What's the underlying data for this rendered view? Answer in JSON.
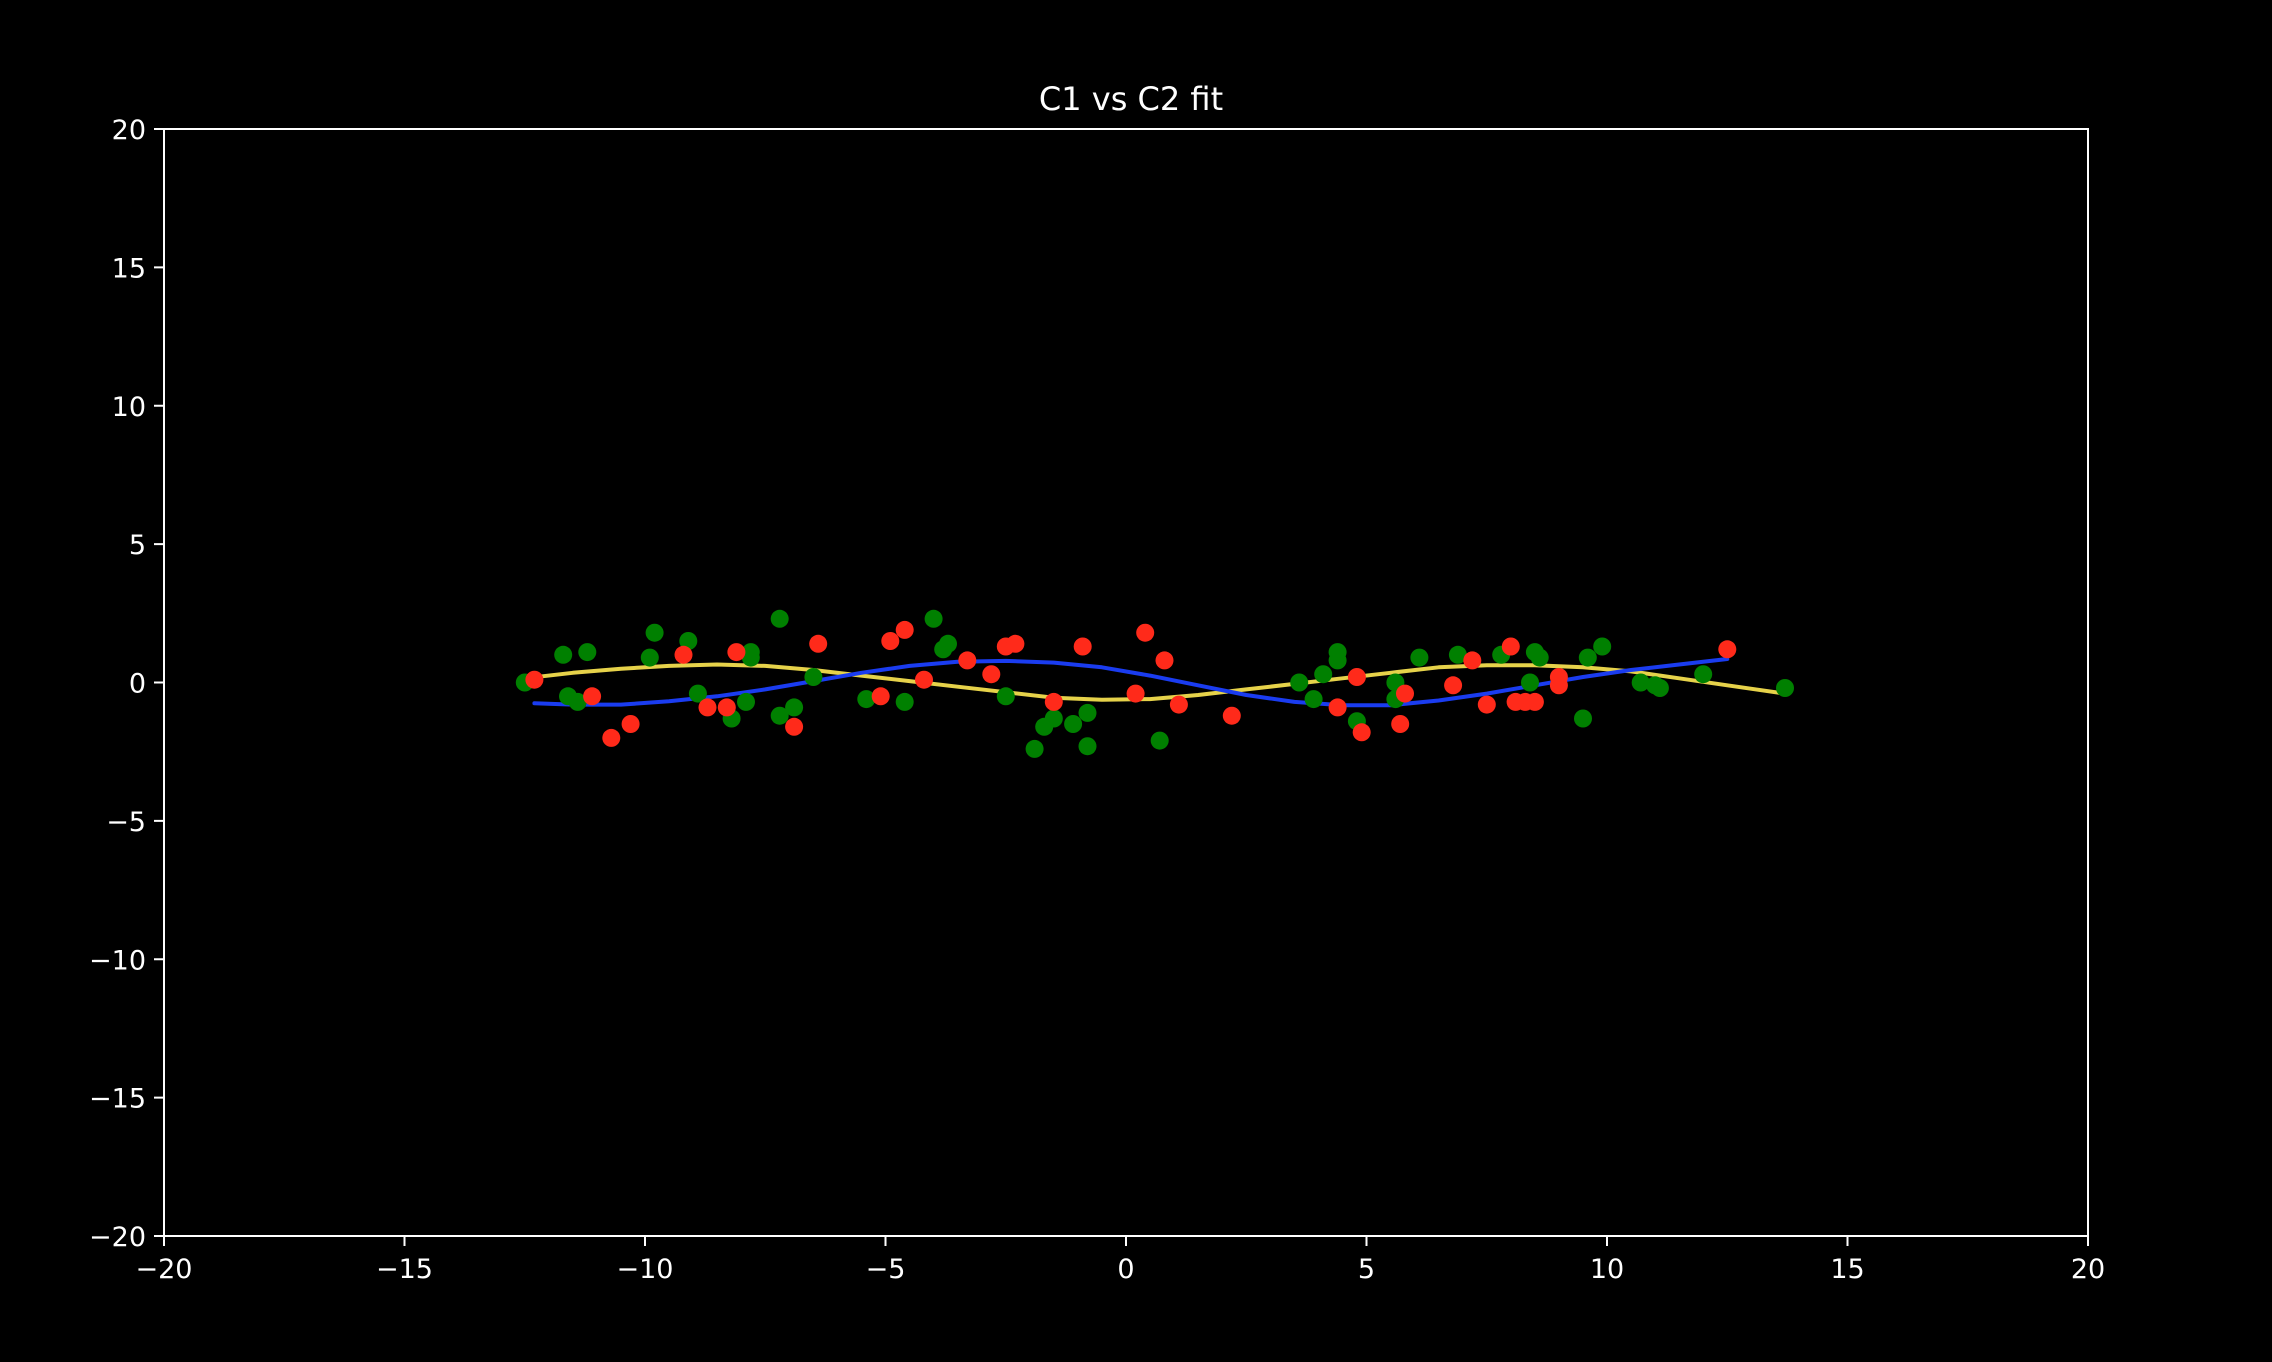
{
  "chart_data": {
    "type": "scatter",
    "title": "C1 vs C2 fit",
    "xlabel": "",
    "ylabel": "",
    "xlim": [
      -20,
      20
    ],
    "ylim": [
      -20,
      20
    ],
    "x_ticks": [
      -20,
      -15,
      -10,
      -5,
      0,
      5,
      10,
      15,
      20
    ],
    "y_ticks": [
      -20,
      -15,
      -10,
      -5,
      0,
      5,
      10,
      15,
      20
    ],
    "x_tick_labels": [
      "−20",
      "−15",
      "−10",
      "−5",
      "0",
      "5",
      "10",
      "15",
      "20"
    ],
    "y_tick_labels": [
      "−20",
      "−15",
      "−10",
      "−5",
      "0",
      "5",
      "10",
      "15",
      "20"
    ],
    "grid": false,
    "background": "#000000",
    "axes_color": "#ffffff",
    "series": [
      {
        "kind": "scatter",
        "color": "#008000",
        "points": [
          [
            -12.5,
            0.0
          ],
          [
            -11.7,
            1.0
          ],
          [
            -11.6,
            -0.5
          ],
          [
            -11.4,
            -0.7
          ],
          [
            -11.2,
            1.1
          ],
          [
            -9.8,
            1.8
          ],
          [
            -9.9,
            0.9
          ],
          [
            -9.1,
            1.5
          ],
          [
            -8.9,
            -0.4
          ],
          [
            -8.2,
            -1.3
          ],
          [
            -7.8,
            1.1
          ],
          [
            -7.8,
            0.9
          ],
          [
            -7.9,
            -0.7
          ],
          [
            -7.2,
            2.3
          ],
          [
            -7.2,
            -1.2
          ],
          [
            -6.9,
            -0.9
          ],
          [
            -6.5,
            0.2
          ],
          [
            -5.4,
            -0.6
          ],
          [
            -4.6,
            -0.7
          ],
          [
            -4.0,
            2.3
          ],
          [
            -3.8,
            1.2
          ],
          [
            -3.7,
            1.4
          ],
          [
            -2.5,
            -0.5
          ],
          [
            -1.9,
            -2.4
          ],
          [
            -1.7,
            -1.6
          ],
          [
            -1.5,
            -1.3
          ],
          [
            -1.1,
            -1.5
          ],
          [
            -0.8,
            -1.1
          ],
          [
            -0.8,
            -2.3
          ],
          [
            0.7,
            -2.1
          ],
          [
            3.6,
            0.0
          ],
          [
            3.9,
            -0.6
          ],
          [
            4.1,
            0.3
          ],
          [
            4.4,
            0.8
          ],
          [
            4.4,
            1.1
          ],
          [
            4.8,
            -1.4
          ],
          [
            5.6,
            0.0
          ],
          [
            5.6,
            -0.6
          ],
          [
            6.1,
            0.9
          ],
          [
            6.9,
            1.0
          ],
          [
            7.8,
            1.0
          ],
          [
            8.4,
            0.0
          ],
          [
            8.5,
            1.1
          ],
          [
            8.6,
            0.9
          ],
          [
            9.6,
            0.9
          ],
          [
            9.9,
            1.3
          ],
          [
            9.5,
            -1.3
          ],
          [
            10.7,
            0.0
          ],
          [
            11.0,
            -0.1
          ],
          [
            11.1,
            -0.2
          ],
          [
            12.0,
            0.3
          ],
          [
            13.7,
            -0.2
          ]
        ]
      },
      {
        "kind": "scatter",
        "color": "#ff2a1a",
        "points": [
          [
            -12.3,
            0.1
          ],
          [
            -11.1,
            -0.5
          ],
          [
            -10.7,
            -2.0
          ],
          [
            -10.3,
            -1.5
          ],
          [
            -9.2,
            1.0
          ],
          [
            -8.7,
            -0.9
          ],
          [
            -8.3,
            -0.9
          ],
          [
            -8.1,
            1.1
          ],
          [
            -6.9,
            -1.6
          ],
          [
            -6.4,
            1.4
          ],
          [
            -5.1,
            -0.5
          ],
          [
            -4.9,
            1.5
          ],
          [
            -4.6,
            1.9
          ],
          [
            -4.2,
            0.1
          ],
          [
            -3.3,
            0.8
          ],
          [
            -2.8,
            0.3
          ],
          [
            -2.5,
            1.3
          ],
          [
            -2.3,
            1.4
          ],
          [
            -1.5,
            -0.7
          ],
          [
            -0.9,
            1.3
          ],
          [
            0.2,
            -0.4
          ],
          [
            0.4,
            1.8
          ],
          [
            0.8,
            0.8
          ],
          [
            1.1,
            -0.8
          ],
          [
            2.2,
            -1.2
          ],
          [
            4.4,
            -0.9
          ],
          [
            4.8,
            0.2
          ],
          [
            4.9,
            -1.8
          ],
          [
            5.7,
            -1.5
          ],
          [
            5.8,
            -0.4
          ],
          [
            6.8,
            -0.1
          ],
          [
            7.2,
            0.8
          ],
          [
            7.5,
            -0.8
          ],
          [
            8.0,
            1.3
          ],
          [
            8.1,
            -0.7
          ],
          [
            8.3,
            -0.7
          ],
          [
            8.5,
            -0.7
          ],
          [
            9.0,
            0.2
          ],
          [
            9.0,
            -0.1
          ],
          [
            12.5,
            1.2
          ]
        ]
      },
      {
        "kind": "line",
        "color": "#e6d24a",
        "points": [
          [
            -12.5,
            0.15
          ],
          [
            -11.5,
            0.35
          ],
          [
            -10.5,
            0.5
          ],
          [
            -9.5,
            0.6
          ],
          [
            -8.5,
            0.65
          ],
          [
            -7.5,
            0.6
          ],
          [
            -6.5,
            0.45
          ],
          [
            -5.5,
            0.25
          ],
          [
            -4.5,
            0.05
          ],
          [
            -3.5,
            -0.15
          ],
          [
            -2.5,
            -0.35
          ],
          [
            -1.5,
            -0.55
          ],
          [
            -0.5,
            -0.62
          ],
          [
            0.5,
            -0.6
          ],
          [
            1.5,
            -0.45
          ],
          [
            2.5,
            -0.25
          ],
          [
            3.5,
            -0.05
          ],
          [
            4.5,
            0.15
          ],
          [
            5.5,
            0.35
          ],
          [
            6.5,
            0.55
          ],
          [
            7.5,
            0.62
          ],
          [
            8.5,
            0.62
          ],
          [
            9.5,
            0.55
          ],
          [
            10.5,
            0.4
          ],
          [
            11.5,
            0.15
          ],
          [
            12.5,
            -0.1
          ],
          [
            13.7,
            -0.4
          ]
        ]
      },
      {
        "kind": "line",
        "color": "#1a3cf0",
        "points": [
          [
            -12.3,
            -0.75
          ],
          [
            -11.5,
            -0.8
          ],
          [
            -10.5,
            -0.8
          ],
          [
            -9.5,
            -0.68
          ],
          [
            -8.5,
            -0.5
          ],
          [
            -7.5,
            -0.25
          ],
          [
            -6.5,
            0.05
          ],
          [
            -5.5,
            0.35
          ],
          [
            -4.5,
            0.6
          ],
          [
            -3.5,
            0.75
          ],
          [
            -2.5,
            0.78
          ],
          [
            -1.5,
            0.72
          ],
          [
            -0.5,
            0.55
          ],
          [
            0.5,
            0.25
          ],
          [
            1.5,
            -0.1
          ],
          [
            2.5,
            -0.45
          ],
          [
            3.5,
            -0.7
          ],
          [
            4.5,
            -0.82
          ],
          [
            5.5,
            -0.82
          ],
          [
            6.5,
            -0.65
          ],
          [
            7.5,
            -0.4
          ],
          [
            8.5,
            -0.1
          ],
          [
            9.5,
            0.2
          ],
          [
            10.5,
            0.45
          ],
          [
            11.5,
            0.65
          ],
          [
            12.5,
            0.85
          ]
        ]
      }
    ]
  }
}
